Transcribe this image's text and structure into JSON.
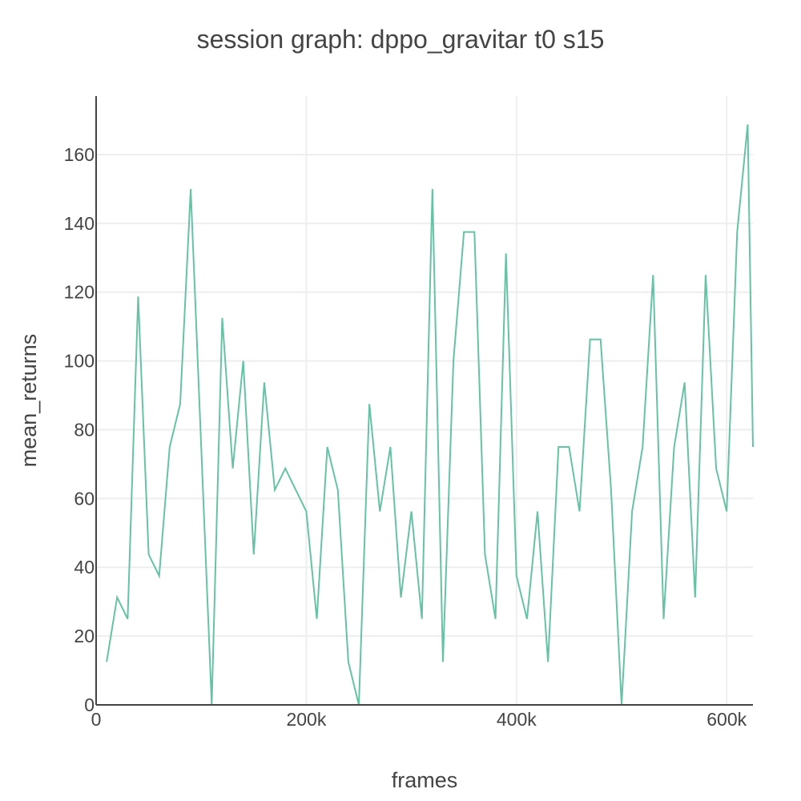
{
  "chart_data": {
    "type": "line",
    "title": "session graph: dppo_gravitar t0 s15",
    "xlabel": "frames",
    "ylabel": "mean_returns",
    "xlim": [
      0,
      625000
    ],
    "ylim": [
      0,
      177
    ],
    "x_ticks": [
      0,
      200000,
      400000,
      600000
    ],
    "x_tick_labels": [
      "0",
      "200k",
      "400k",
      "600k"
    ],
    "y_ticks": [
      0,
      20,
      40,
      60,
      80,
      100,
      120,
      140,
      160
    ],
    "y_tick_labels": [
      "0",
      "20",
      "40",
      "60",
      "80",
      "100",
      "120",
      "140",
      "160"
    ],
    "grid": true,
    "legend": "none",
    "color": "#66c2a5",
    "series": [
      {
        "x": [
          10000,
          20000,
          30000,
          40000,
          50000,
          60000,
          70000,
          80000,
          90000,
          100000,
          110000,
          120000,
          130000,
          140000,
          150000,
          160000,
          170000,
          180000,
          190000,
          200000,
          210000,
          220000,
          230000,
          240000,
          250000,
          260000,
          270000,
          280000,
          290000,
          300000,
          310000,
          320000,
          330000,
          340000,
          350000,
          360000,
          370000,
          380000,
          390000,
          400000,
          410000,
          420000,
          430000,
          440000,
          450000,
          460000,
          470000,
          480000,
          490000,
          500000,
          510000,
          520000,
          530000,
          540000,
          550000,
          560000,
          570000,
          580000,
          590000,
          600000,
          610000,
          620000,
          625000
        ],
        "y": [
          12.5,
          31.25,
          25,
          118.75,
          43.75,
          37.5,
          75,
          87.5,
          150,
          75,
          0,
          112.5,
          68.75,
          100,
          43.75,
          93.75,
          62.5,
          68.75,
          62.5,
          56.25,
          25,
          75,
          62.5,
          12.5,
          0,
          87.5,
          56.25,
          75,
          31.25,
          56.25,
          25,
          150,
          12.5,
          100,
          137.5,
          137.5,
          43.75,
          25,
          131.25,
          37.5,
          25,
          56.25,
          12.5,
          75,
          75,
          56.25,
          106.25,
          106.25,
          62.5,
          0,
          56.25,
          75,
          125,
          25,
          75,
          93.75,
          31.25,
          125,
          68.75,
          56.25,
          137.5,
          168.75,
          75
        ]
      }
    ]
  }
}
